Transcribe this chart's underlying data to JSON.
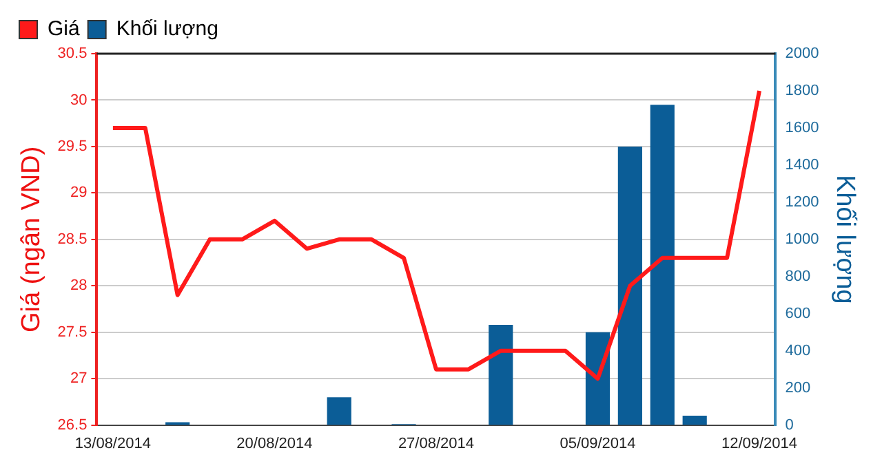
{
  "chart_data": {
    "type": "bar",
    "categories": [
      "13/08/2014",
      null,
      null,
      null,
      null,
      "20/08/2014",
      null,
      null,
      null,
      null,
      "27/08/2014",
      null,
      null,
      null,
      null,
      "05/09/2014",
      null,
      null,
      null,
      null,
      "12/09/2014"
    ],
    "series": [
      {
        "name": "Giá",
        "type": "line",
        "color": "#ff1a1a",
        "values": [
          29.7,
          29.7,
          27.9,
          28.5,
          28.5,
          28.7,
          28.4,
          28.5,
          28.5,
          28.3,
          27.1,
          27.1,
          27.3,
          27.3,
          27.3,
          27.0,
          28.0,
          28.3,
          28.3,
          28.3,
          30.1
        ]
      },
      {
        "name": "Khối lượng",
        "axis": "y2",
        "color": "#0b5d97",
        "values": [
          0,
          0,
          15,
          0,
          0,
          0,
          0,
          150,
          0,
          5,
          0,
          0,
          540,
          0,
          0,
          500,
          1500,
          1725,
          50,
          0,
          0
        ]
      }
    ],
    "ylabel": "Giá (ngân VND)",
    "y2label": "Khối lượng",
    "ylim": [
      26.5,
      30.5
    ],
    "yticks": [
      26.5,
      27,
      27.5,
      28,
      28.5,
      29,
      29.5,
      30,
      30.5
    ],
    "y2lim": [
      0,
      2000
    ],
    "y2ticks": [
      0,
      200,
      400,
      600,
      800,
      1000,
      1200,
      1400,
      1600,
      1800,
      2000
    ],
    "grid": "y",
    "legend": "top left",
    "marker": "none",
    "line_style": "solid"
  }
}
